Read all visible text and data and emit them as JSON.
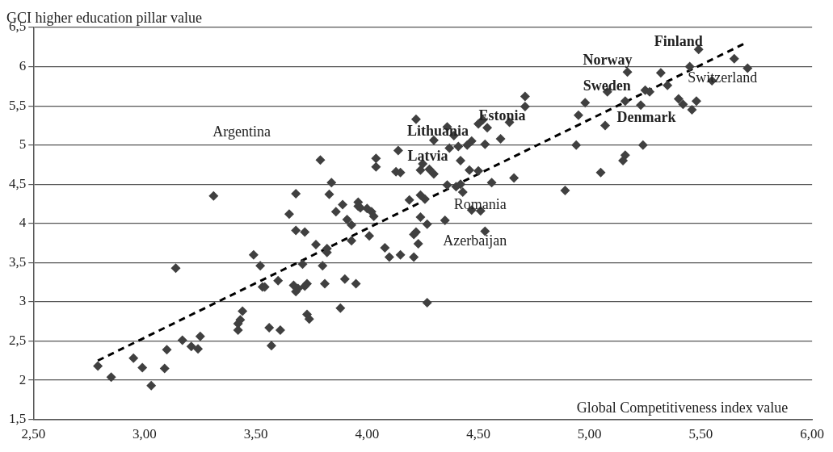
{
  "chart_data": {
    "type": "scatter",
    "xlabel": "Global Competitiveness index value",
    "ylabel": "GCI higher education pillar value",
    "xlim": [
      2.5,
      6
    ],
    "xticks": [
      {
        "value": 2.5,
        "label": "2,50"
      },
      {
        "value": 3,
        "label": "3,00"
      },
      {
        "value": 3.5,
        "label": "3,50"
      },
      {
        "value": 4,
        "label": "4,00"
      },
      {
        "value": 4.5,
        "label": "4,50"
      },
      {
        "value": 5,
        "label": "5,00"
      },
      {
        "value": 5.5,
        "label": "5,50"
      },
      {
        "value": 6,
        "label": "6,00"
      }
    ],
    "ylim": [
      1.5,
      6.5
    ],
    "yticks": [
      {
        "value": 1.5,
        "label": "1,5"
      },
      2,
      {
        "value": 2.5,
        "label": "2,5"
      },
      3,
      {
        "value": 3.5,
        "label": "3,5"
      },
      4,
      {
        "value": 4.5,
        "label": "4,5"
      },
      5,
      {
        "value": 5.5,
        "label": "5,5"
      },
      6,
      {
        "value": 6.5,
        "label": "6,5"
      }
    ],
    "grid": "y",
    "marker": "diamond",
    "series": [
      {
        "type": "scatter",
        "color": "#404040",
        "x": [
          2.79,
          2.85,
          2.95,
          2.99,
          3.03,
          3.09,
          3.1,
          3.14,
          3.17,
          3.21,
          3.24,
          3.25,
          3.31,
          3.42,
          3.42,
          3.43,
          3.44,
          3.49,
          3.52,
          3.53,
          3.54,
          3.56,
          3.57,
          3.6,
          3.61,
          3.65,
          3.67,
          3.68,
          3.68,
          3.68,
          3.69,
          3.71,
          3.72,
          3.72,
          3.73,
          3.74,
          3.73,
          3.77,
          3.79,
          3.8,
          3.81,
          3.82,
          3.82,
          3.83,
          3.84,
          3.86,
          3.88,
          3.89,
          3.9,
          3.91,
          3.93,
          3.93,
          3.95,
          3.96,
          3.96,
          3.97,
          4.0,
          4.01,
          4.02,
          4.03,
          4.04,
          4.04,
          4.08,
          4.1,
          4.13,
          4.14,
          4.15,
          4.15,
          4.19,
          4.21,
          4.21,
          4.22,
          4.22,
          4.23,
          4.24,
          4.24,
          4.24,
          4.25,
          4.26,
          4.27,
          4.27,
          4.28,
          4.3,
          4.3,
          4.35,
          4.36,
          4.36,
          4.37,
          4.39,
          4.4,
          4.41,
          4.42,
          4.42,
          4.43,
          4.45,
          4.46,
          4.47,
          4.47,
          4.5,
          4.5,
          4.51,
          4.52,
          4.53,
          4.53,
          4.54,
          4.56,
          4.6,
          4.64,
          4.66,
          4.71,
          4.71,
          4.89,
          4.94,
          4.95,
          4.98,
          5.05,
          5.07,
          5.08,
          5.15,
          5.16,
          5.16,
          5.17,
          5.24,
          5.23,
          5.25,
          5.27,
          5.32,
          5.35,
          5.4,
          5.42,
          5.45,
          5.46,
          5.48,
          5.49,
          5.55,
          5.65,
          5.71
        ],
        "values": [
          2.18,
          2.04,
          2.28,
          2.16,
          1.93,
          2.15,
          2.39,
          3.43,
          2.51,
          2.43,
          2.4,
          2.56,
          4.35,
          2.64,
          2.72,
          2.77,
          2.88,
          3.6,
          3.46,
          3.19,
          3.19,
          2.67,
          2.44,
          3.27,
          2.64,
          4.12,
          3.21,
          3.91,
          4.38,
          3.13,
          3.17,
          3.48,
          3.2,
          3.89,
          2.84,
          2.78,
          3.23,
          3.73,
          4.81,
          3.46,
          3.23,
          3.68,
          3.63,
          4.37,
          4.52,
          4.15,
          2.92,
          4.24,
          3.29,
          4.05,
          3.78,
          3.98,
          3.23,
          4.27,
          4.22,
          4.2,
          4.19,
          3.84,
          4.15,
          4.09,
          4.83,
          4.72,
          3.69,
          3.57,
          4.66,
          4.93,
          4.65,
          3.6,
          4.3,
          3.57,
          3.86,
          3.89,
          5.33,
          3.74,
          4.08,
          4.68,
          4.36,
          4.76,
          4.31,
          3.99,
          2.99,
          4.69,
          5.06,
          4.63,
          4.04,
          5.23,
          4.49,
          4.96,
          5.12,
          4.47,
          4.98,
          4.5,
          4.8,
          4.4,
          5.0,
          4.68,
          4.17,
          5.05,
          5.27,
          4.67,
          4.16,
          5.32,
          5.01,
          3.9,
          5.22,
          4.52,
          5.08,
          5.29,
          4.58,
          5.62,
          5.49,
          4.42,
          5.0,
          5.38,
          5.54,
          4.65,
          5.25,
          5.68,
          4.8,
          4.87,
          5.56,
          5.93,
          5.0,
          5.51,
          5.7,
          5.68,
          5.92,
          5.76,
          5.59,
          5.52,
          6.0,
          5.45,
          5.56,
          6.22,
          5.82,
          6.1,
          5.98
        ]
      },
      {
        "type": "line",
        "color": "#000000",
        "line_style": "dashed",
        "marker": "none",
        "x": [
          2.79,
          5.7
        ],
        "values": [
          2.25,
          6.3
        ]
      }
    ],
    "annotations": [
      "Argentina",
      {
        "text": "Lithuania",
        "x": 4.22,
        "y": 5.33
      },
      {
        "text": "Latvia",
        "x": 4.24,
        "y": 4.68
      },
      {
        "text": "Estonia",
        "x": 4.52,
        "y": 5.32
      },
      {
        "text": "Romania",
        "x": 4.47,
        "y": 4.17
      },
      {
        "text": "Azerbaijan",
        "x": 4.53,
        "y": 3.9
      },
      {
        "text": "Finland",
        "x": 5.49,
        "y": 6.22
      },
      {
        "text": "Norway",
        "x": 5.17,
        "y": 5.93
      },
      {
        "text": "Sweden",
        "x": 5.08,
        "y": 5.68
      },
      {
        "text": "Switzerland",
        "x": 5.71,
        "y": 5.98
      },
      {
        "text": "Denmark",
        "x": 5.42,
        "y": 5.52
      }
    ]
  }
}
